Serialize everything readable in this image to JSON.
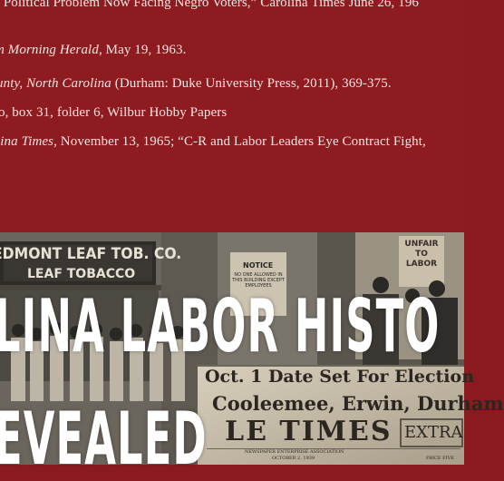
{
  "notes": [
    {
      "pre": "’ Political Problem Now Facing Negro Voters,” Carolina Times June 26, 196",
      "italic": "",
      "post": ""
    },
    {
      "pre": "",
      "italic": "m Morning Herald",
      "post": ", May 19, 1963."
    },
    {
      "pre": "",
      "italic": "unty, North Carolina",
      "post": " (Durham: Duke University Press, 2011), 369-375."
    },
    {
      "pre": "o, box 31, folder 6, Wilbur Hobby Papers",
      "italic": "",
      "post": ""
    },
    {
      "pre": "",
      "italic": "lina Times",
      "post": ", November 13, 1965; “C-R and Labor Leaders Eye Contract Fight,"
    }
  ],
  "photo": {
    "sign_top": "EDMONT LEAF TOB. CO.",
    "sign_bottom": "LEAF TOBACCO",
    "notice_title": "NOTICE",
    "notice_body": "NO ONE ALLOWED IN THIS BUILDING EXCEPT EMPLOYEES",
    "placard": "UNFAIR TO LABOR",
    "news_line1": "Oct. 1 Date Set For Election",
    "news_line2": "Cooleemee, Erwin, Durham",
    "news_masthead": "LE TIMES",
    "news_extra": "EXTRA",
    "news_assoc": "NEWSPAPER ENTERPRISE ASSOCIATION",
    "news_date": "OCTOBER 2, 1939",
    "news_price": "PRICE FIVE"
  },
  "headline": {
    "line1": "LINA LABOR HISTO",
    "line2": "EVEALED"
  },
  "colors": {
    "banner": "#8e1b20",
    "text": "#f3e6e2",
    "headline": "#ffffff"
  }
}
